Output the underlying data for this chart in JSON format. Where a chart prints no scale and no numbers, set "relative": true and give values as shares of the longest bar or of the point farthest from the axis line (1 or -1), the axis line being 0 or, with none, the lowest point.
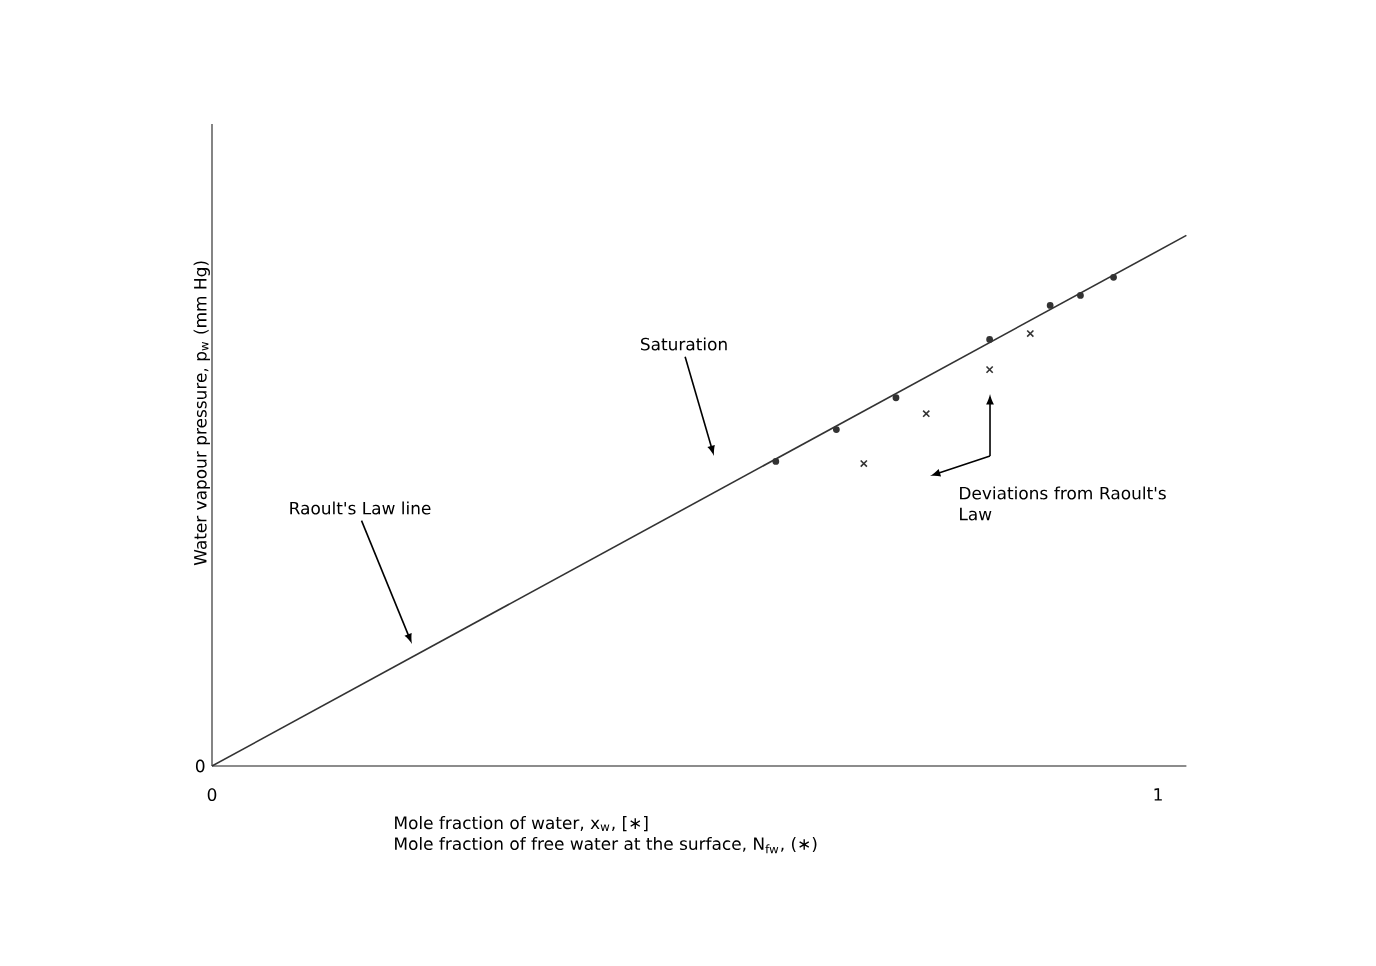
{
  "chart_data": {
    "type": "scatter",
    "relative": true,
    "xlabel": "Mole fraction of water, x$_{w}$, [∗]",
    "ylabel": "Water vapour pressure, p$_{w}$ (mm Hg)",
    "xlim": [
      0,
      1.03
    ],
    "xticks": [
      0,
      1
    ],
    "series": [
      {
        "type": "line",
        "color": "#333333",
        "marker": "none",
        "line_style": "solid",
        "x": [
          0,
          1.03
        ],
        "values": [
          0,
          1
        ]
      },
      {
        "color": "#333333",
        "marker": "circle",
        "x": [
          0.596,
          0.66,
          0.723,
          0.822,
          0.886,
          0.918,
          0.953
        ],
        "values": [
          0.574,
          0.634,
          0.694,
          0.804,
          0.868,
          0.887,
          0.921
        ]
      },
      {
        "color": "#333333",
        "marker": "cross",
        "x": [
          0.689,
          0.755,
          0.822,
          0.865
        ],
        "values": [
          0.57,
          0.664,
          0.747,
          0.815
        ]
      }
    ],
    "annotations": [
      "Saturation",
      "Raoult's Law line",
      "Deviations from Raoult's Law",
      "Mole fraction of free water at the surface, N$_{fw}$, (∗)",
      "0"
    ]
  }
}
